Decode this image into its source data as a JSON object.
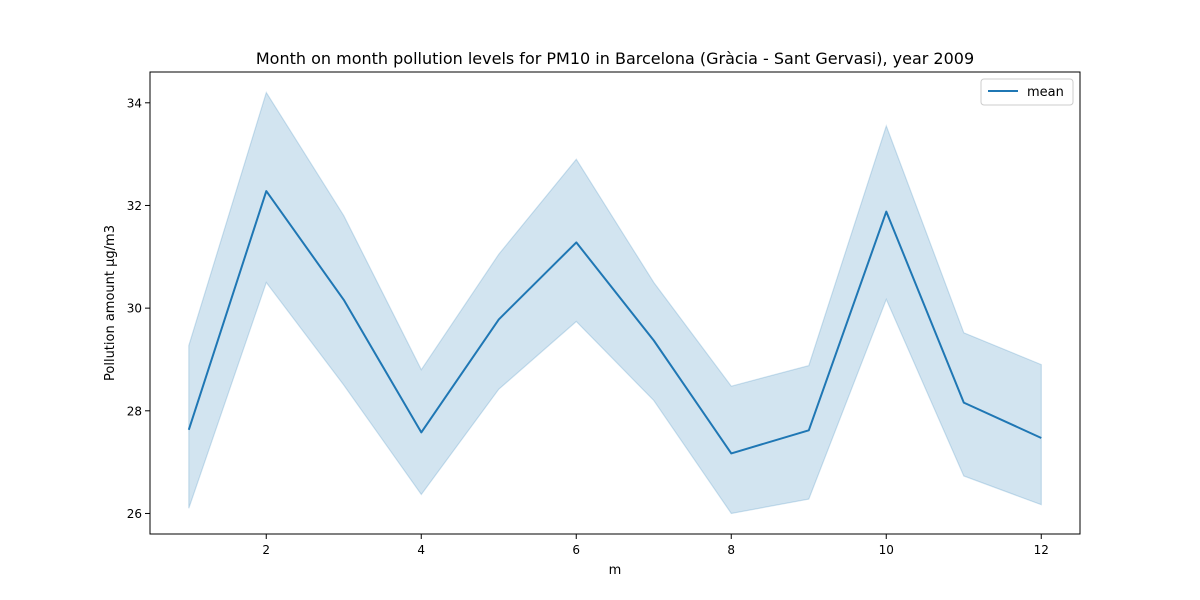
{
  "chart_data": {
    "type": "line",
    "title": "Month on month pollution levels for PM10 in Barcelona (Gràcia - Sant Gervasi), year 2009",
    "xlabel": "m",
    "ylabel": "Pollution amount µg/m3",
    "xlim": [
      0.5,
      12.5
    ],
    "ylim": [
      25.6,
      34.6
    ],
    "x_ticks": [
      2,
      4,
      6,
      8,
      10,
      12
    ],
    "y_ticks": [
      26,
      28,
      30,
      32,
      34
    ],
    "grid": false,
    "legend": {
      "position": "top-right",
      "entries": [
        "mean"
      ]
    },
    "colors": {
      "line": "#1f77b4",
      "band": "#1f77b4"
    },
    "series": [
      {
        "name": "mean",
        "x": [
          1,
          2,
          3,
          4,
          5,
          6,
          7,
          8,
          9,
          10,
          11,
          12
        ],
        "values": [
          27.63,
          32.28,
          30.16,
          27.58,
          29.78,
          31.28,
          29.37,
          27.17,
          27.62,
          31.88,
          28.16,
          27.47
        ],
        "lower": [
          26.1,
          30.5,
          28.5,
          26.37,
          28.42,
          29.74,
          28.2,
          26.0,
          26.28,
          30.17,
          26.73,
          26.17
        ],
        "upper": [
          29.27,
          34.2,
          31.8,
          28.8,
          31.05,
          32.9,
          30.5,
          28.48,
          28.88,
          33.55,
          29.52,
          28.9
        ]
      }
    ]
  }
}
